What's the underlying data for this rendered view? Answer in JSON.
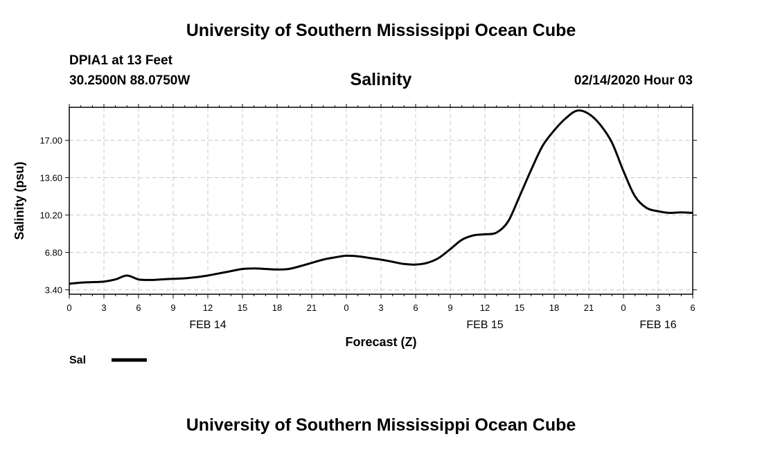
{
  "header": {
    "title": "University of Southern Mississippi Ocean Cube",
    "station": "DPIA1 at 13 Feet",
    "coords": "30.2500N 88.0750W",
    "datetime": "02/14/2020 Hour 03"
  },
  "footer": {
    "title": "University of Southern Mississippi Ocean Cube"
  },
  "colors": {
    "line": "#000000",
    "grid": "#c8c8c8"
  },
  "chart_data": {
    "type": "line",
    "title": "Salinity",
    "xlabel": "Forecast (Z)",
    "ylabel": "Salinity (psu)",
    "xlim": [
      0,
      54
    ],
    "ylim": [
      3.0,
      20.0
    ],
    "yticks": [
      3.4,
      6.8,
      10.2,
      13.6,
      17.0
    ],
    "ytick_labels": [
      "3.40",
      "6.80",
      "10.20",
      "13.60",
      "17.00"
    ],
    "xticks": [
      0,
      3,
      6,
      9,
      12,
      15,
      18,
      21,
      24,
      27,
      30,
      33,
      36,
      39,
      42,
      45,
      48,
      51,
      54
    ],
    "xtick_labels": [
      "0",
      "3",
      "6",
      "9",
      "12",
      "15",
      "18",
      "21",
      "0",
      "3",
      "6",
      "9",
      "12",
      "15",
      "18",
      "21",
      "0",
      "3",
      "6"
    ],
    "date_labels": [
      {
        "x": 12,
        "label": "FEB 14"
      },
      {
        "x": 36,
        "label": "FEB 15"
      },
      {
        "x": 51,
        "label": "FEB 16"
      }
    ],
    "grid": true,
    "legend_position": "bottom-left",
    "series": [
      {
        "name": "Sal",
        "x": [
          0,
          1,
          2,
          3,
          4,
          5,
          6,
          7,
          8,
          9,
          10,
          11,
          12,
          13,
          14,
          15,
          16,
          17,
          18,
          19,
          20,
          21,
          22,
          23,
          24,
          25,
          26,
          27,
          28,
          29,
          30,
          31,
          32,
          33,
          34,
          35,
          36,
          37,
          38,
          39,
          40,
          41,
          42,
          43,
          44,
          45,
          46,
          47,
          48,
          49,
          50,
          51,
          52,
          53,
          54
        ],
        "values": [
          3.95,
          4.05,
          4.1,
          4.15,
          4.35,
          4.7,
          4.35,
          4.3,
          4.35,
          4.4,
          4.45,
          4.55,
          4.7,
          4.9,
          5.1,
          5.3,
          5.35,
          5.3,
          5.25,
          5.3,
          5.55,
          5.85,
          6.15,
          6.35,
          6.5,
          6.45,
          6.3,
          6.15,
          5.95,
          5.75,
          5.7,
          5.85,
          6.3,
          7.1,
          7.95,
          8.35,
          8.45,
          8.6,
          9.6,
          11.9,
          14.3,
          16.5,
          17.9,
          19.0,
          19.7,
          19.4,
          18.4,
          16.8,
          14.2,
          11.9,
          10.85,
          10.55,
          10.4,
          10.45,
          10.4
        ]
      }
    ]
  }
}
